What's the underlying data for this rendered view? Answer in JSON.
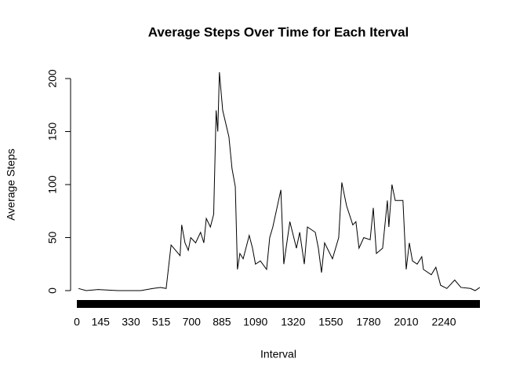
{
  "chart_data": {
    "type": "line",
    "title": "Average Steps Over Time for Each Iterval",
    "x_label": "Interval",
    "y_label": "Average Steps",
    "x": [
      10,
      57,
      130,
      250,
      390,
      465,
      510,
      545,
      575,
      630,
      640,
      660,
      680,
      695,
      725,
      755,
      775,
      790,
      815,
      835,
      850,
      860,
      870,
      890,
      928,
      947,
      967,
      980,
      995,
      1015,
      1052,
      1072,
      1090,
      1120,
      1158,
      1177,
      1196,
      1245,
      1263,
      1300,
      1340,
      1360,
      1388,
      1407,
      1455,
      1474,
      1493,
      1512,
      1560,
      1598,
      1617,
      1646,
      1684,
      1703,
      1722,
      1751,
      1790,
      1809,
      1828,
      1866,
      1895,
      1904,
      1923,
      1943,
      1990,
      2010,
      2029,
      2048,
      2077,
      2105,
      2115,
      2163,
      2191,
      2220,
      2258,
      2306,
      2344,
      2402,
      2431,
      2459
    ],
    "series": [
      {
        "color": "#000000",
        "values": [
          2,
          0,
          1,
          0,
          0,
          2,
          3,
          2,
          43,
          33,
          62,
          45,
          38,
          50,
          45,
          55,
          45,
          68,
          60,
          72,
          170,
          150,
          206,
          170,
          145,
          115,
          98,
          20,
          35,
          30,
          52,
          40,
          25,
          28,
          20,
          50,
          60,
          95,
          25,
          65,
          40,
          55,
          25,
          60,
          55,
          40,
          17,
          45,
          30,
          50,
          102,
          80,
          62,
          65,
          40,
          50,
          48,
          78,
          35,
          40,
          85,
          60,
          100,
          85,
          85,
          20,
          45,
          28,
          25,
          32,
          20,
          15,
          22,
          5,
          2,
          10,
          3,
          2,
          0,
          3
        ]
      }
    ],
    "xlim": [
      0,
      2460
    ],
    "xticks": [
      0,
      145,
      330,
      515,
      700,
      885,
      1090,
      1320,
      1550,
      1780,
      2010,
      2240
    ],
    "ylim": [
      0,
      200
    ],
    "yticks": [
      0,
      50,
      100,
      150,
      200
    ]
  }
}
